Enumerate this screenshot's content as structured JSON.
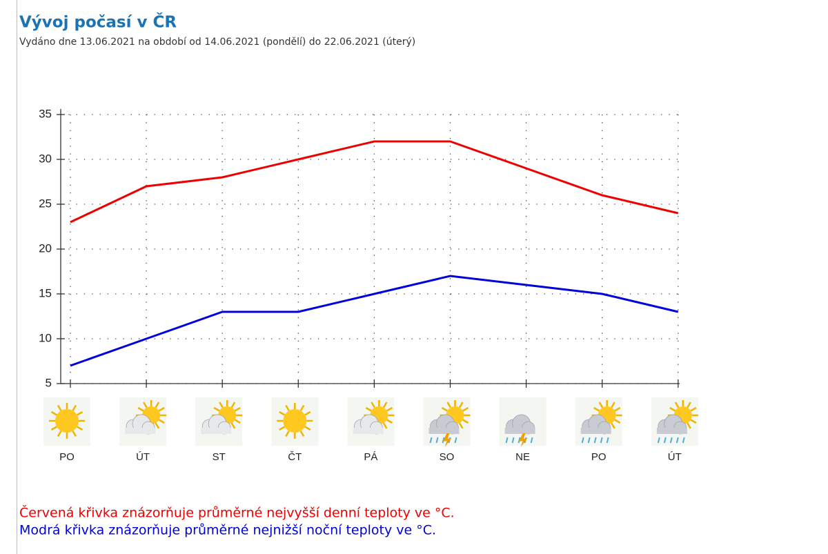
{
  "chart_data": {
    "type": "line",
    "title": "Vývoj počasí v ČR",
    "subtitle": "Vydáno dne 13.06.2021 na období od 14.06.2021 (pondělí) do 22.06.2021 (úterý)",
    "categories": [
      "PO",
      "ÚT",
      "ST",
      "ČT",
      "PÁ",
      "SO",
      "NE",
      "PO",
      "ÚT"
    ],
    "series": [
      {
        "name": "Červená křivka znázorňuje průměrné nejvyšší denní teploty ve °C.",
        "color": "#ee0000",
        "values": [
          23,
          27,
          28,
          30,
          32,
          32,
          29,
          26,
          24
        ]
      },
      {
        "name": "Modrá křivka znázorňuje průměrné nejnižší noční teploty ve °C.",
        "color": "#0000dd",
        "values": [
          7,
          10,
          13,
          13,
          15,
          17,
          16,
          15,
          13
        ]
      }
    ],
    "ylim": [
      5,
      35
    ],
    "yticks": [
      5,
      10,
      15,
      20,
      25,
      30,
      35
    ],
    "grid": true
  }
}
